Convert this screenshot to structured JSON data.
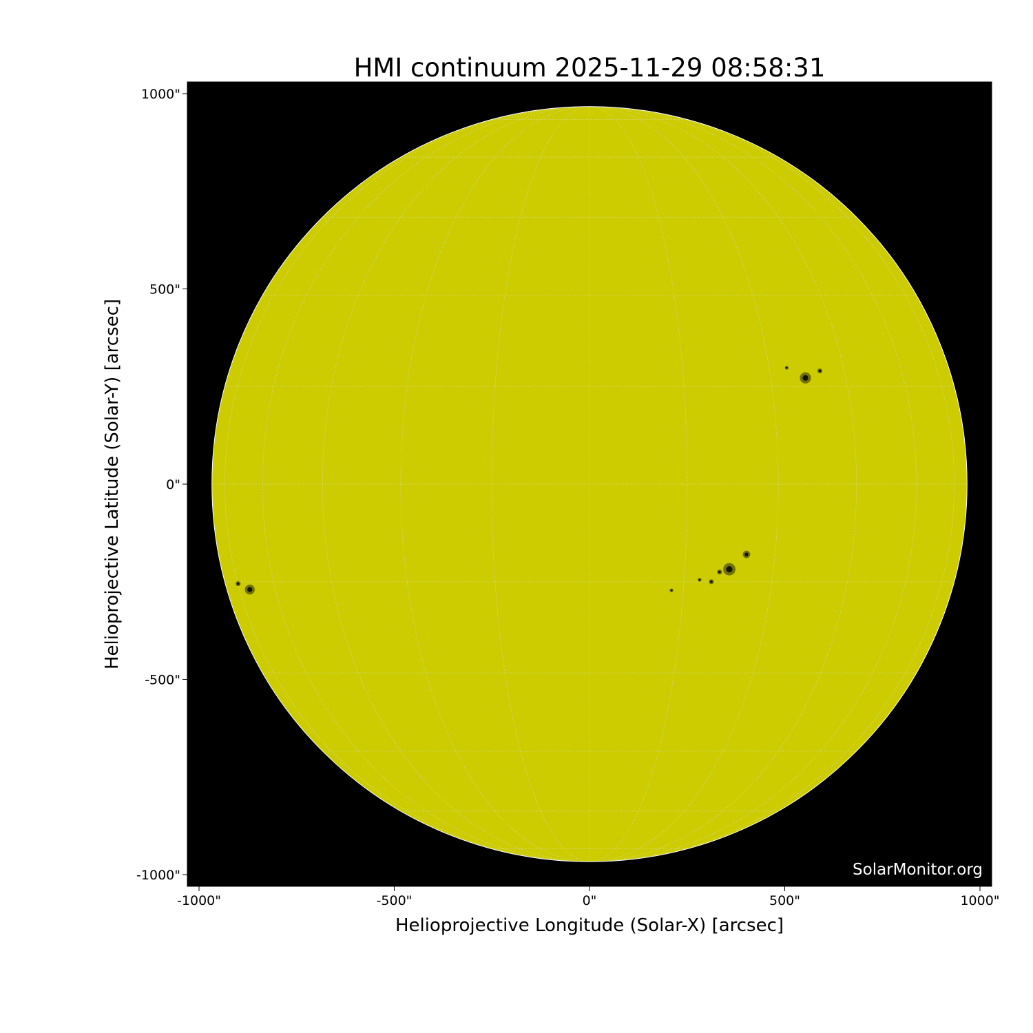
{
  "chart_data": {
    "type": "image",
    "title": "HMI continuum 2025-11-29 08:58:31",
    "xlabel": "Helioprojective Longitude (Solar-X) [arcsec]",
    "ylabel": "Helioprojective Latitude (Solar-Y) [arcsec]",
    "xlim": [
      -1030,
      1030
    ],
    "ylim": [
      -1030,
      1030
    ],
    "xticks": [
      -1000,
      -500,
      0,
      500,
      1000
    ],
    "yticks": [
      -1000,
      -500,
      0,
      500,
      1000
    ],
    "xtick_labels": [
      "-1000\"",
      "-500\"",
      "0\"",
      "500\"",
      "1000\""
    ],
    "ytick_labels": [
      "-1000\"",
      "-500\"",
      "0\"",
      "500\"",
      "1000\""
    ],
    "solar_radius_arcsec": 967,
    "grid": "heliographic lat/lon every 15 degrees, dotted",
    "colors": {
      "disk": "#cccc00",
      "background": "#000000",
      "grid": "#dddddd"
    },
    "sunspots": [
      {
        "x": 553,
        "y": 272,
        "r": 9
      },
      {
        "x": 590,
        "y": 290,
        "r": 4
      },
      {
        "x": 505,
        "y": 298,
        "r": 3
      },
      {
        "x": 358,
        "y": -218,
        "r": 10
      },
      {
        "x": 402,
        "y": -180,
        "r": 6
      },
      {
        "x": 333,
        "y": -225,
        "r": 4
      },
      {
        "x": 312,
        "y": -250,
        "r": 4
      },
      {
        "x": 282,
        "y": -245,
        "r": 3
      },
      {
        "x": 210,
        "y": -272,
        "r": 3
      },
      {
        "x": -870,
        "y": -270,
        "r": 8
      },
      {
        "x": -900,
        "y": -255,
        "r": 4
      }
    ],
    "watermark": "SolarMonitor.org"
  }
}
